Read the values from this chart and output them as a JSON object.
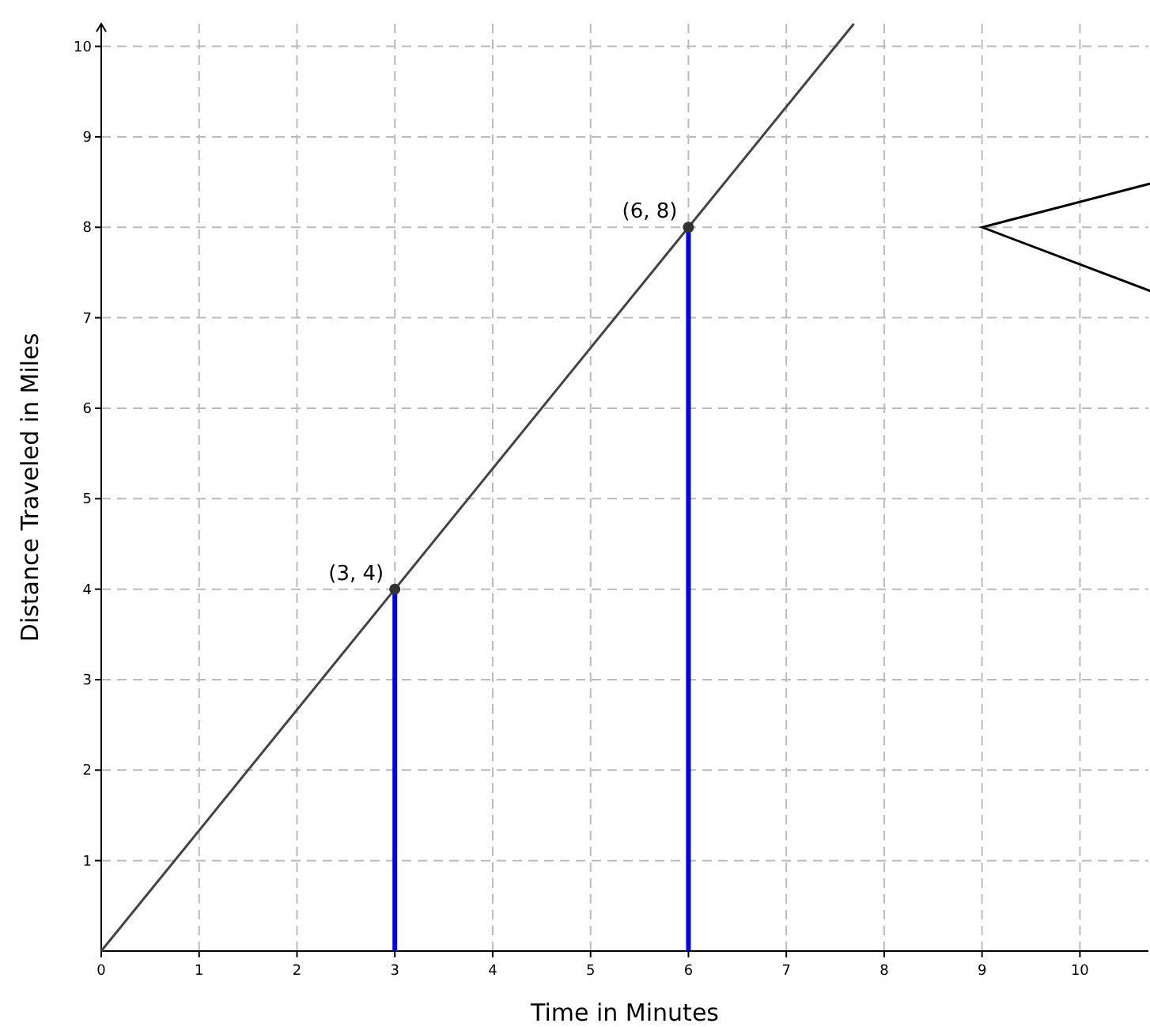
{
  "chart_data": {
    "type": "line",
    "xlabel": "Time in Minutes",
    "ylabel": "Distance Traveled in Miles",
    "xlim": [
      0,
      10.7
    ],
    "ylim": [
      0,
      10.25
    ],
    "xticks": [
      0,
      1,
      2,
      3,
      4,
      5,
      6,
      7,
      8,
      9,
      10
    ],
    "yticks": [
      1,
      2,
      3,
      4,
      5,
      6,
      7,
      8,
      9,
      10
    ],
    "grid": true,
    "series": [
      {
        "color": "#444444",
        "x": [
          0,
          3,
          6,
          7.69
        ],
        "values": [
          0,
          4,
          8,
          10.25
        ]
      },
      {
        "type": "bar",
        "color": "#0000ee",
        "x": [
          3,
          6
        ],
        "values": [
          4,
          8
        ]
      },
      {
        "type": "scatter",
        "color": "#333333",
        "x": [
          3,
          6
        ],
        "values": [
          4,
          8
        ],
        "marker": "circle"
      }
    ],
    "annotations": [
      {
        "text": "(3, 4)",
        "x": 3,
        "y": 4
      },
      {
        "text": "(6, 8)",
        "x": 6,
        "y": 8
      }
    ]
  }
}
